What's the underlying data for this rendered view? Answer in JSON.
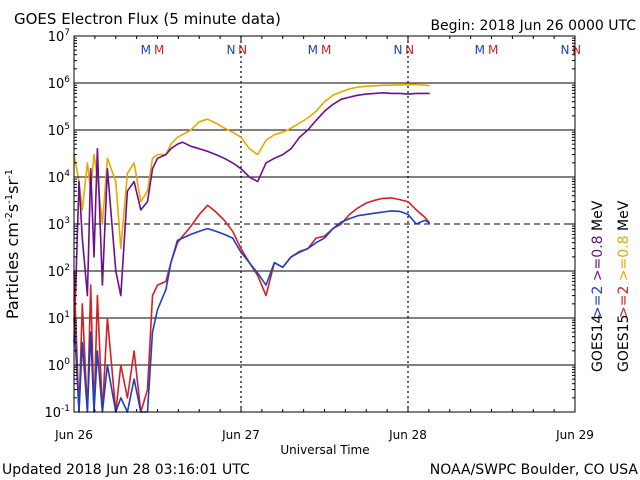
{
  "title": "GOES Electron Flux (5 minute data)",
  "begin_label": "Begin: 2018 Jun 26 0000 UTC",
  "updated_label": "Updated 2018 Jun 28 03:16:01 UTC",
  "credit_label": "NOAA/SWPC Boulder, CO USA",
  "chart_data": {
    "type": "line",
    "title": "GOES Electron Flux (5 minute data)",
    "xlabel": "Universal Time",
    "ylabel": "Particles cm-2 s-1 sr-1",
    "y_scale": "log",
    "ylim": [
      0.1,
      10000000
    ],
    "xlim": [
      0,
      3
    ],
    "x_unit": "days since 2018 Jun 26 0000 UTC",
    "x_tick_values": [
      0,
      1,
      2,
      3
    ],
    "x_tick_labels": [
      "Jun 26",
      "Jun 27",
      "Jun 28",
      "Jun 29"
    ],
    "y_tick_values": [
      0.1,
      1,
      10,
      100,
      1000,
      10000,
      100000,
      1000000,
      10000000
    ],
    "y_tick_bases": [
      "10",
      "10",
      "10",
      "10",
      "10",
      "10",
      "10",
      "10",
      "10"
    ],
    "y_tick_exponents": [
      "-1",
      "0",
      "1",
      "2",
      "3",
      "4",
      "5",
      "6",
      "7"
    ],
    "threshold_line": 1000,
    "day_markers": [
      1,
      2
    ],
    "mn_markers": [
      {
        "x": 0.43,
        "letter": "M",
        "color": "#1f3fbf"
      },
      {
        "x": 0.51,
        "letter": "M",
        "color": "#d42020"
      },
      {
        "x": 0.94,
        "letter": "N",
        "color": "#1f3fbf"
      },
      {
        "x": 1.01,
        "letter": "N",
        "color": "#d42020"
      },
      {
        "x": 1.43,
        "letter": "M",
        "color": "#1f3fbf"
      },
      {
        "x": 1.51,
        "letter": "M",
        "color": "#d42020"
      },
      {
        "x": 1.94,
        "letter": "N",
        "color": "#1f3fbf"
      },
      {
        "x": 2.01,
        "letter": "N",
        "color": "#d42020"
      },
      {
        "x": 2.43,
        "letter": "M",
        "color": "#1f3fbf"
      },
      {
        "x": 2.51,
        "letter": "M",
        "color": "#d42020"
      },
      {
        "x": 2.94,
        "letter": "N",
        "color": "#1f3fbf"
      },
      {
        "x": 3.01,
        "letter": "N",
        "color": "#d42020"
      }
    ],
    "legend": {
      "goes14_label": "GOES14",
      "goes15_label": "GOES15",
      "goes14_series": [
        {
          "text": ">=2",
          "color": "#1f3fbf"
        },
        {
          "text": ">=0.8",
          "color": "#6b0f8f"
        },
        {
          "text": "MeV",
          "color": "#000000"
        }
      ],
      "goes15_series": [
        {
          "text": ">=2",
          "color": "#d42020"
        },
        {
          "text": ">=0.8",
          "color": "#e8a800"
        },
        {
          "text": "MeV",
          "color": "#000000"
        }
      ]
    },
    "series": [
      {
        "name": "GOES15 >=0.8 MeV",
        "color": "#e8a800",
        "x": [
          0,
          0.03,
          0.05,
          0.08,
          0.1,
          0.12,
          0.14,
          0.17,
          0.2,
          0.25,
          0.28,
          0.32,
          0.36,
          0.4,
          0.44,
          0.47,
          0.5,
          0.55,
          0.58,
          0.62,
          0.65,
          0.7,
          0.75,
          0.8,
          0.85,
          0.9,
          0.95,
          1.0,
          1.05,
          1.1,
          1.15,
          1.2,
          1.25,
          1.3,
          1.35,
          1.4,
          1.45,
          1.5,
          1.55,
          1.6,
          1.65,
          1.7,
          1.75,
          1.8,
          1.85,
          1.9,
          1.95,
          2.0,
          2.05,
          2.1,
          2.13
        ],
        "values": [
          30000,
          8000,
          2000,
          20000,
          5000,
          30000,
          10000,
          1000,
          25000,
          8000,
          300,
          12000,
          20000,
          3000,
          5000,
          25000,
          30000,
          30000,
          50000,
          70000,
          80000,
          100000,
          150000,
          170000,
          140000,
          110000,
          90000,
          70000,
          40000,
          30000,
          60000,
          80000,
          90000,
          110000,
          140000,
          180000,
          250000,
          400000,
          550000,
          650000,
          750000,
          820000,
          850000,
          870000,
          900000,
          900000,
          910000,
          920000,
          930000,
          900000,
          880000
        ]
      },
      {
        "name": "GOES14 >=0.8 MeV",
        "color": "#6b0f8f",
        "x": [
          0,
          0.03,
          0.05,
          0.08,
          0.1,
          0.12,
          0.14,
          0.17,
          0.2,
          0.25,
          0.28,
          0.32,
          0.36,
          0.4,
          0.44,
          0.47,
          0.5,
          0.55,
          0.58,
          0.62,
          0.65,
          0.7,
          0.75,
          0.8,
          0.85,
          0.9,
          0.95,
          1.0,
          1.05,
          1.1,
          1.15,
          1.2,
          1.25,
          1.3,
          1.35,
          1.4,
          1.45,
          1.5,
          1.55,
          1.6,
          1.65,
          1.7,
          1.75,
          1.8,
          1.85,
          1.9,
          1.95,
          2.0,
          2.05,
          2.1,
          2.13
        ],
        "values": [
          3,
          8000,
          500,
          30,
          15000,
          200,
          40000,
          50,
          15000,
          100,
          30,
          5000,
          8000,
          2000,
          3000,
          15000,
          25000,
          30000,
          40000,
          50000,
          55000,
          45000,
          40000,
          35000,
          30000,
          25000,
          20000,
          15000,
          10000,
          8000,
          20000,
          25000,
          30000,
          40000,
          70000,
          100000,
          160000,
          250000,
          350000,
          450000,
          500000,
          550000,
          580000,
          600000,
          620000,
          600000,
          600000,
          580000,
          600000,
          600000,
          600000
        ]
      },
      {
        "name": "GOES15 >=2 MeV",
        "color": "#d42020",
        "x": [
          0,
          0.03,
          0.05,
          0.08,
          0.1,
          0.12,
          0.14,
          0.17,
          0.2,
          0.25,
          0.28,
          0.32,
          0.36,
          0.4,
          0.44,
          0.47,
          0.5,
          0.55,
          0.58,
          0.62,
          0.65,
          0.7,
          0.75,
          0.8,
          0.85,
          0.9,
          0.95,
          1.0,
          1.05,
          1.1,
          1.15,
          1.2,
          1.25,
          1.3,
          1.35,
          1.4,
          1.45,
          1.5,
          1.55,
          1.6,
          1.65,
          1.7,
          1.75,
          1.8,
          1.85,
          1.9,
          1.95,
          2.0,
          2.05,
          2.1,
          2.13
        ],
        "values": [
          100,
          0.1,
          20,
          0.1,
          50,
          0.1,
          30,
          0.1,
          10,
          0.1,
          1,
          0.2,
          2,
          0.1,
          0.3,
          30,
          50,
          60,
          150,
          400,
          550,
          900,
          1600,
          2500,
          1800,
          1200,
          700,
          300,
          150,
          80,
          30,
          150,
          120,
          200,
          260,
          300,
          500,
          550,
          800,
          1000,
          1600,
          2200,
          2800,
          3200,
          3500,
          3600,
          3300,
          3000,
          2000,
          1400,
          1050
        ]
      },
      {
        "name": "GOES14 >=2 MeV",
        "color": "#1f3fbf",
        "x": [
          0,
          0.03,
          0.05,
          0.08,
          0.1,
          0.12,
          0.14,
          0.17,
          0.2,
          0.25,
          0.28,
          0.32,
          0.36,
          0.4,
          0.44,
          0.47,
          0.5,
          0.55,
          0.58,
          0.62,
          0.65,
          0.7,
          0.75,
          0.8,
          0.85,
          0.9,
          0.95,
          1.0,
          1.05,
          1.1,
          1.15,
          1.2,
          1.25,
          1.3,
          1.35,
          1.4,
          1.45,
          1.5,
          1.55,
          1.6,
          1.65,
          1.7,
          1.75,
          1.8,
          1.85,
          1.9,
          1.95,
          2.0,
          2.05,
          2.1,
          2.13
        ],
        "values": [
          10,
          0.1,
          3,
          0.1,
          5,
          0.1,
          2,
          0.1,
          1,
          0.1,
          0.2,
          0.1,
          0.5,
          0.1,
          0.1,
          5,
          15,
          40,
          150,
          450,
          500,
          600,
          700,
          800,
          700,
          600,
          500,
          250,
          150,
          90,
          50,
          150,
          120,
          200,
          250,
          300,
          400,
          500,
          800,
          1100,
          1300,
          1500,
          1600,
          1700,
          1800,
          1900,
          1850,
          1600,
          1000,
          1200,
          1050
        ]
      }
    ]
  }
}
